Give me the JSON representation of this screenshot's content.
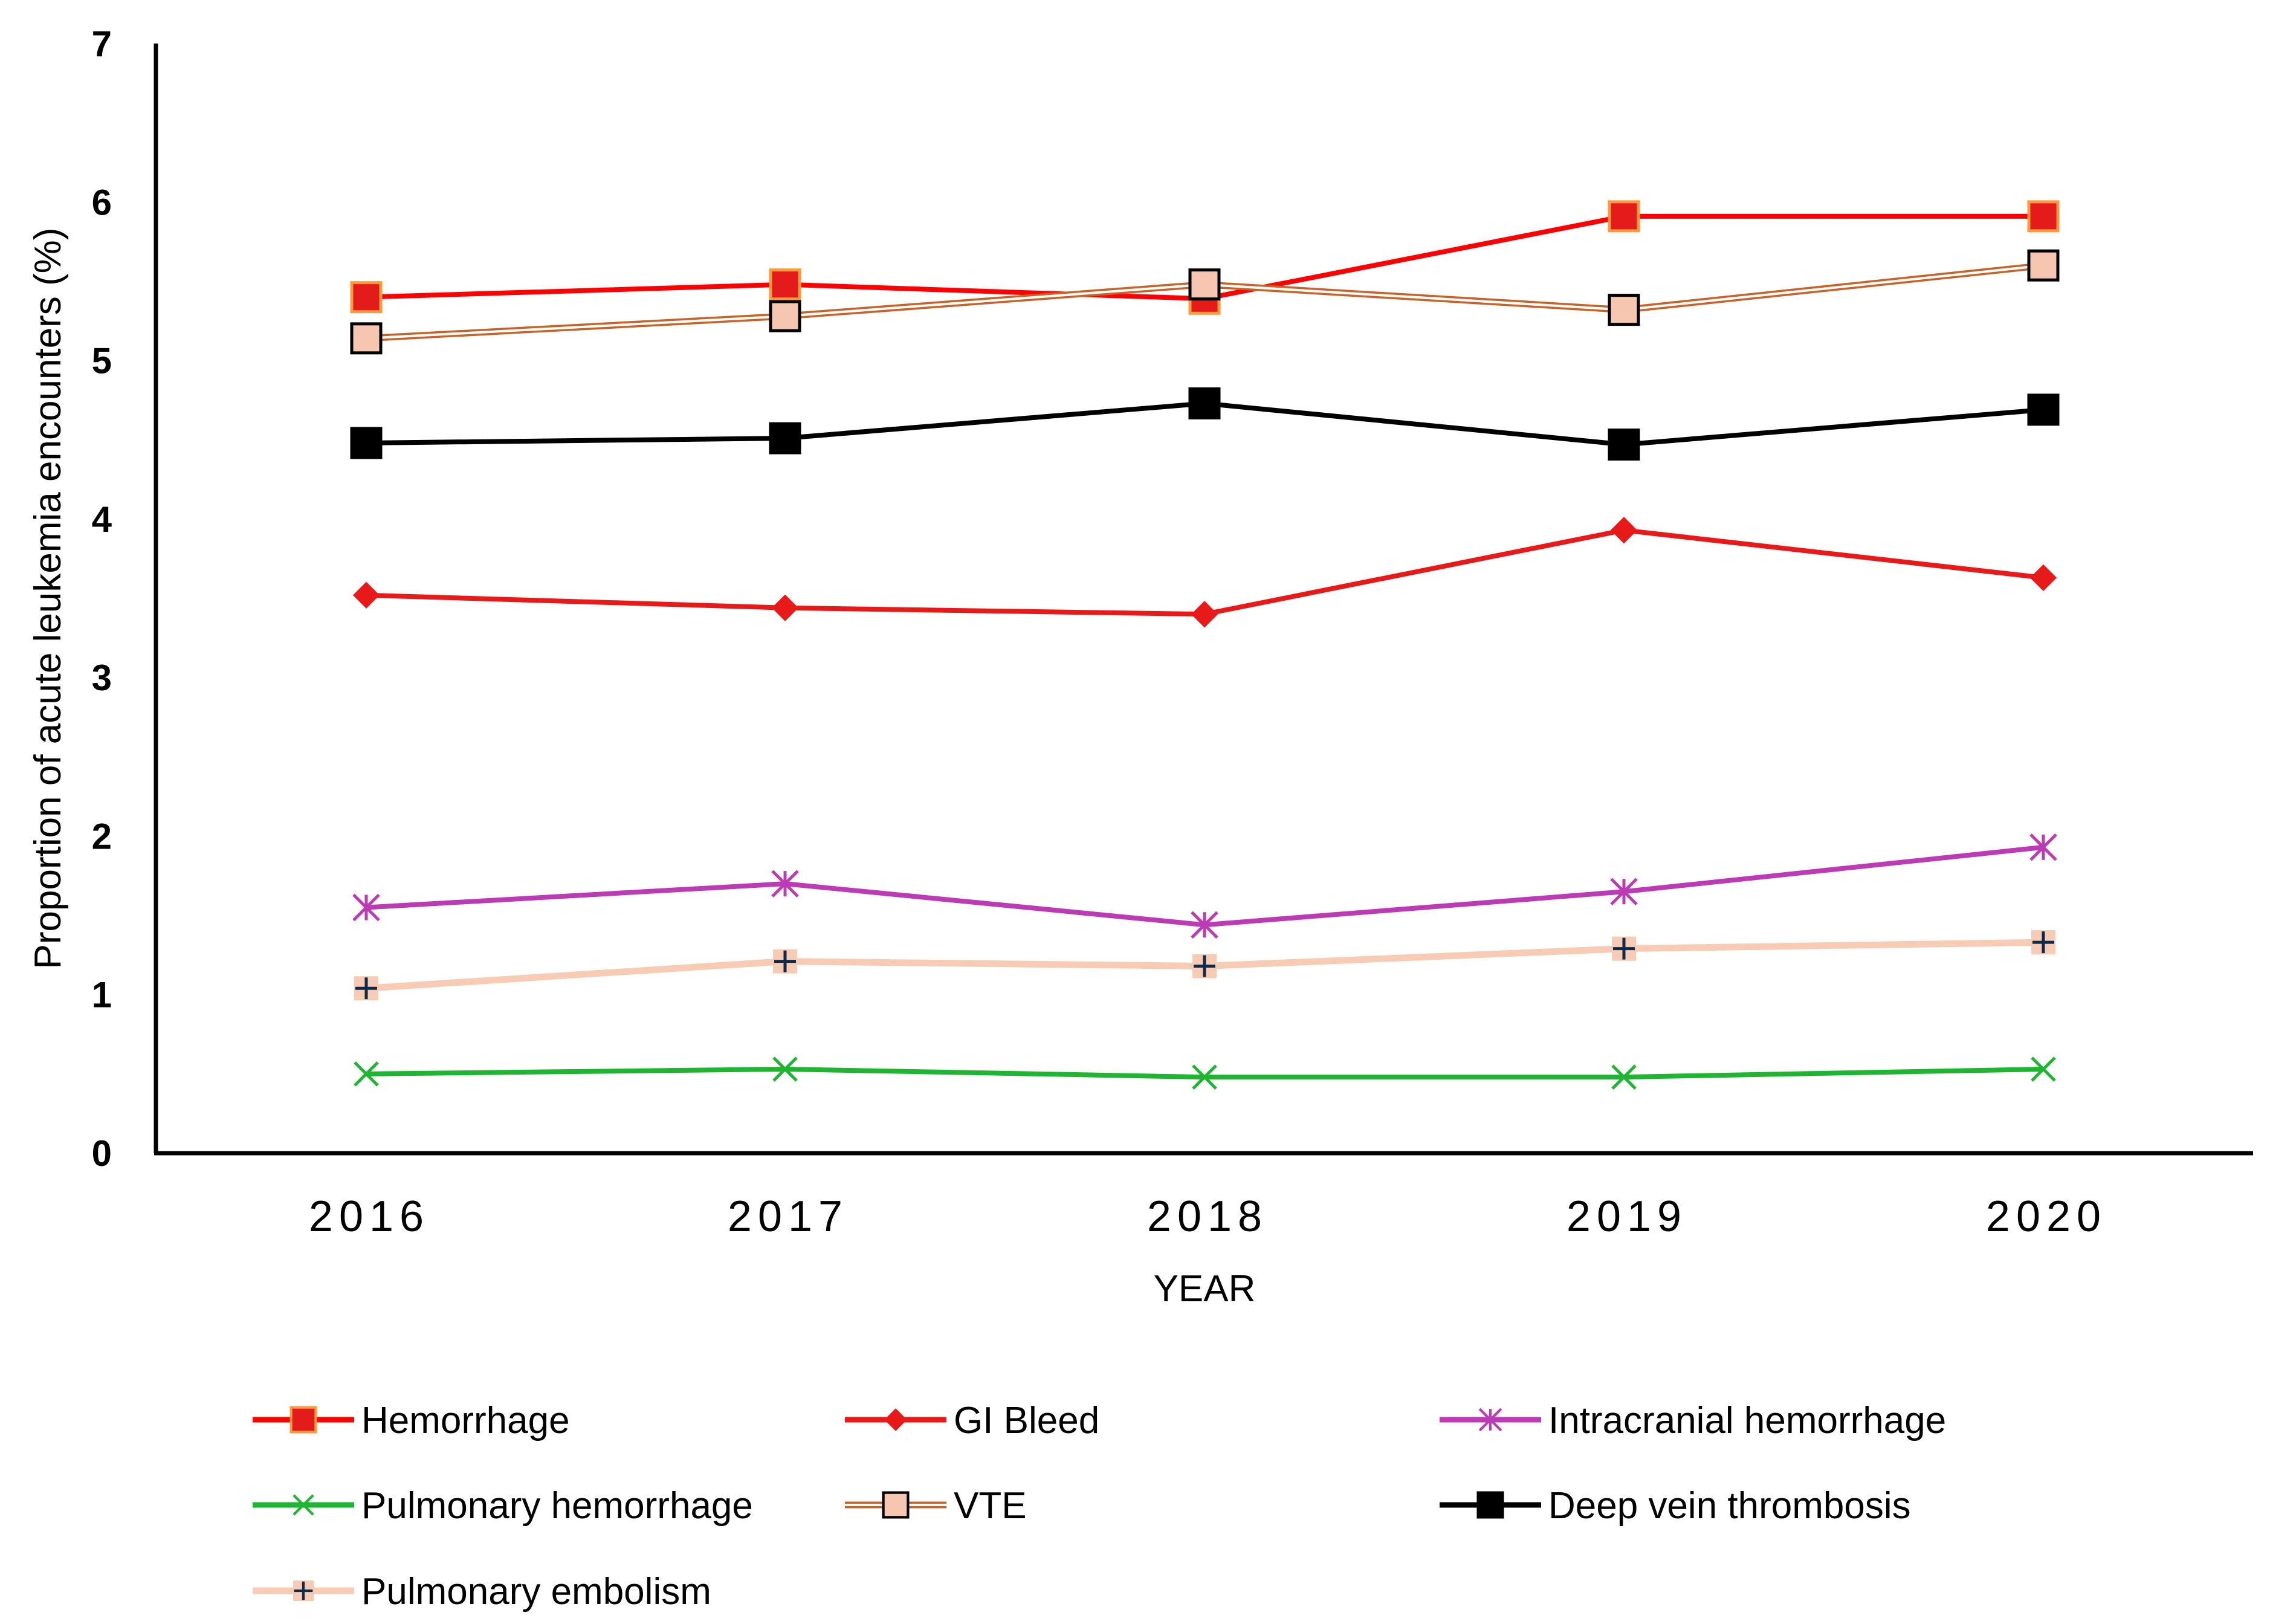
{
  "chart_data": {
    "type": "line",
    "title": "",
    "xlabel": "YEAR",
    "ylabel": "Proportion of acute leukemia encounters (%)",
    "ylim": [
      0,
      7
    ],
    "yticks": [
      "0",
      "1",
      "2",
      "3",
      "4",
      "5",
      "6",
      "7"
    ],
    "categories": [
      "2016",
      "2017",
      "2018",
      "2019",
      "2020"
    ],
    "grid": false,
    "legend_position": "bottom",
    "series": [
      {
        "name": "Hemorrhage",
        "values": [
          5.4,
          5.48,
          5.39,
          5.91,
          5.91
        ],
        "color": "#ff0000",
        "marker": "square",
        "marker_fill": "#e31b1b",
        "marker_stroke": "#ff9a3c",
        "style": "solid"
      },
      {
        "name": "GI Bleed",
        "values": [
          3.52,
          3.44,
          3.4,
          3.93,
          3.63
        ],
        "color": "#e81919",
        "marker": "diamond",
        "marker_fill": "#e81919",
        "marker_stroke": "#e81919",
        "style": "solid"
      },
      {
        "name": "Intracranial hemorrhage",
        "values": [
          1.55,
          1.7,
          1.44,
          1.65,
          1.93
        ],
        "color": "#bb3bb5",
        "marker": "asterisk",
        "marker_fill": "none",
        "marker_stroke": "#bb3bb5",
        "style": "solid"
      },
      {
        "name": "Pulmonary hemorrhage",
        "values": [
          0.5,
          0.53,
          0.48,
          0.48,
          0.53
        ],
        "color": "#1fb431",
        "marker": "x",
        "marker_fill": "none",
        "marker_stroke": "#1fb431",
        "style": "solid"
      },
      {
        "name": "VTE",
        "values": [
          5.14,
          5.28,
          5.48,
          5.32,
          5.6
        ],
        "color": "#c5632a",
        "marker": "square",
        "marker_fill": "#f7c6b0",
        "marker_stroke": "#000000",
        "style": "double"
      },
      {
        "name": "Deep vein thrombosis",
        "values": [
          4.48,
          4.51,
          4.73,
          4.47,
          4.69
        ],
        "color": "#000000",
        "marker": "square",
        "marker_fill": "#000000",
        "marker_stroke": "#000000",
        "style": "solid"
      },
      {
        "name": "Pulmonary embolism",
        "values": [
          1.04,
          1.21,
          1.18,
          1.29,
          1.33
        ],
        "color": "#f8cbb5",
        "marker": "plus",
        "marker_fill": "#f8cbb5",
        "marker_stroke": "#0d2a4a",
        "style": "solid"
      }
    ]
  }
}
